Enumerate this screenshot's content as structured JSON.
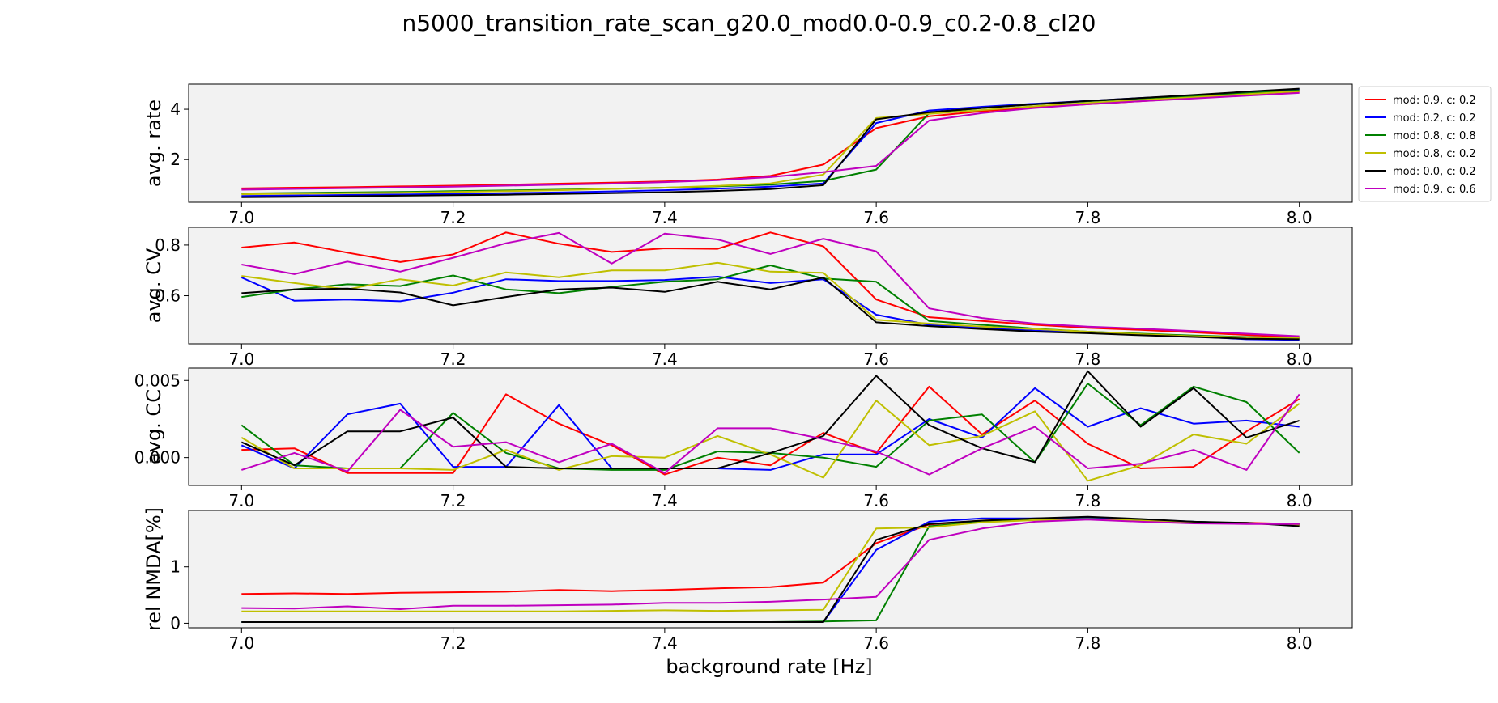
{
  "title": "n5000_transition_rate_scan_g20.0_mod0.0-0.9_c0.2-0.8_cl20",
  "chart_data": {
    "type": "line",
    "title": "n5000_transition_rate_scan_g20.0_mod0.0-0.9_c0.2-0.8_cl20",
    "xlabel": "background rate [Hz]",
    "x": [
      7.0,
      7.05,
      7.1,
      7.15,
      7.2,
      7.25,
      7.3,
      7.35,
      7.4,
      7.45,
      7.5,
      7.55,
      7.6,
      7.65,
      7.7,
      7.75,
      7.8,
      7.85,
      7.9,
      7.95,
      8.0
    ],
    "xlim": [
      6.95,
      8.05
    ],
    "xticks": [
      "7.0",
      "7.2",
      "7.4",
      "7.6",
      "7.8",
      "8.0"
    ],
    "legend": {
      "placement": "outside right of top panel",
      "entries": [
        {
          "label": "mod: 0.9, c: 0.2",
          "color": "#ff0000"
        },
        {
          "label": "mod: 0.2, c: 0.2",
          "color": "#0000ff"
        },
        {
          "label": "mod: 0.8, c: 0.8",
          "color": "#008000"
        },
        {
          "label": "mod: 0.8, c: 0.2",
          "color": "#bfbf00"
        },
        {
          "label": "mod: 0.0, c: 0.2",
          "color": "#000000"
        },
        {
          "label": "mod: 0.9, c: 0.6",
          "color": "#bf00bf"
        }
      ]
    },
    "panels": [
      {
        "ylabel": "avg. rate",
        "ylim": [
          0.3,
          5.0
        ],
        "yticks": [
          2,
          4
        ],
        "yticklabels": [
          "2",
          "4"
        ],
        "series": [
          {
            "name": "mod: 0.9, c: 0.2",
            "color": "#ff0000",
            "values": [
              0.85,
              0.88,
              0.9,
              0.93,
              0.96,
              1.0,
              1.04,
              1.08,
              1.13,
              1.2,
              1.35,
              1.8,
              3.25,
              3.72,
              3.92,
              4.08,
              4.2,
              4.32,
              4.45,
              4.55,
              4.7
            ]
          },
          {
            "name": "mod: 0.2, c: 0.2",
            "color": "#0000ff",
            "values": [
              0.55,
              0.57,
              0.59,
              0.61,
              0.63,
              0.66,
              0.69,
              0.73,
              0.78,
              0.84,
              0.92,
              1.05,
              3.45,
              3.95,
              4.1,
              4.22,
              4.33,
              4.45,
              4.55,
              4.67,
              4.8
            ]
          },
          {
            "name": "mod: 0.8, c: 0.8",
            "color": "#008000",
            "values": [
              0.65,
              0.67,
              0.69,
              0.71,
              0.74,
              0.77,
              0.8,
              0.84,
              0.88,
              0.93,
              1.0,
              1.15,
              1.6,
              3.85,
              4.05,
              4.2,
              4.32,
              4.43,
              4.53,
              4.64,
              4.75
            ]
          },
          {
            "name": "mod: 0.8, c: 0.2",
            "color": "#bfbf00",
            "values": [
              0.62,
              0.64,
              0.66,
              0.68,
              0.71,
              0.74,
              0.78,
              0.83,
              0.88,
              0.95,
              1.05,
              1.4,
              3.65,
              3.82,
              3.97,
              4.12,
              4.25,
              4.37,
              4.48,
              4.6,
              4.72
            ]
          },
          {
            "name": "mod: 0.0, c: 0.2",
            "color": "#000000",
            "values": [
              0.5,
              0.52,
              0.54,
              0.56,
              0.58,
              0.6,
              0.63,
              0.66,
              0.7,
              0.75,
              0.82,
              0.98,
              3.6,
              3.88,
              4.05,
              4.2,
              4.33,
              4.45,
              4.57,
              4.7,
              4.82
            ]
          },
          {
            "name": "mod: 0.9, c: 0.6",
            "color": "#bf00bf",
            "values": [
              0.8,
              0.83,
              0.86,
              0.89,
              0.92,
              0.96,
              1.0,
              1.04,
              1.1,
              1.18,
              1.3,
              1.5,
              1.75,
              3.55,
              3.85,
              4.05,
              4.2,
              4.32,
              4.43,
              4.54,
              4.65
            ]
          }
        ]
      },
      {
        "ylabel": "avg. CV",
        "ylim": [
          0.41,
          0.87
        ],
        "yticks": [
          0.6,
          0.8
        ],
        "yticklabels": [
          "0.6",
          "0.8"
        ],
        "series": [
          {
            "name": "mod: 0.9, c: 0.2",
            "color": "#ff0000",
            "values": [
              0.79,
              0.81,
              0.77,
              0.733,
              0.763,
              0.85,
              0.805,
              0.773,
              0.787,
              0.785,
              0.85,
              0.795,
              0.585,
              0.515,
              0.5,
              0.485,
              0.473,
              0.465,
              0.455,
              0.445,
              0.435
            ]
          },
          {
            "name": "mod: 0.2, c: 0.2",
            "color": "#0000ff",
            "values": [
              0.672,
              0.58,
              0.585,
              0.578,
              0.612,
              0.665,
              0.658,
              0.658,
              0.662,
              0.675,
              0.65,
              0.665,
              0.525,
              0.485,
              0.473,
              0.462,
              0.455,
              0.447,
              0.44,
              0.428,
              0.425
            ]
          },
          {
            "name": "mod: 0.8, c: 0.8",
            "color": "#008000",
            "values": [
              0.595,
              0.625,
              0.645,
              0.638,
              0.68,
              0.625,
              0.61,
              0.635,
              0.655,
              0.665,
              0.72,
              0.668,
              0.655,
              0.5,
              0.485,
              0.47,
              0.458,
              0.45,
              0.443,
              0.437,
              0.432
            ]
          },
          {
            "name": "mod: 0.8, c: 0.2",
            "color": "#bfbf00",
            "values": [
              0.678,
              0.65,
              0.625,
              0.665,
              0.64,
              0.692,
              0.673,
              0.7,
              0.7,
              0.73,
              0.695,
              0.69,
              0.505,
              0.49,
              0.478,
              0.468,
              0.458,
              0.448,
              0.44,
              0.436,
              0.433
            ]
          },
          {
            "name": "mod: 0.0, c: 0.2",
            "color": "#000000",
            "values": [
              0.61,
              0.625,
              0.628,
              0.613,
              0.562,
              0.595,
              0.625,
              0.632,
              0.615,
              0.655,
              0.625,
              0.672,
              0.495,
              0.48,
              0.468,
              0.458,
              0.452,
              0.444,
              0.437,
              0.43,
              0.428
            ]
          },
          {
            "name": "mod: 0.9, c: 0.6",
            "color": "#bf00bf",
            "values": [
              0.723,
              0.685,
              0.735,
              0.695,
              0.75,
              0.807,
              0.848,
              0.727,
              0.845,
              0.822,
              0.765,
              0.825,
              0.775,
              0.55,
              0.512,
              0.49,
              0.478,
              0.47,
              0.46,
              0.45,
              0.44
            ]
          }
        ]
      },
      {
        "ylabel": "avg. CC",
        "ylim": [
          -0.0018,
          0.0058
        ],
        "yticks": [
          0.0,
          0.005
        ],
        "yticklabels": [
          "0.000",
          "0.005"
        ],
        "series": [
          {
            "name": "mod: 0.9, c: 0.2",
            "color": "#ff0000",
            "values": [
              0.0005,
              0.0006,
              -0.001,
              -0.001,
              -0.001,
              0.0041,
              0.0022,
              0.0008,
              -0.0011,
              0.0,
              -0.0005,
              0.0016,
              0.0003,
              0.0046,
              0.0015,
              0.0037,
              0.0009,
              -0.0007,
              -0.0006,
              0.0017,
              0.0038
            ]
          },
          {
            "name": "mod: 0.2, c: 0.2",
            "color": "#0000ff",
            "values": [
              0.0008,
              -0.0007,
              0.0028,
              0.0035,
              -0.0006,
              -0.0006,
              0.0034,
              -0.0007,
              -0.0007,
              -0.0007,
              -0.0008,
              0.0002,
              0.0002,
              0.0025,
              0.0013,
              0.0045,
              0.002,
              0.0032,
              0.0022,
              0.0024,
              0.002
            ]
          },
          {
            "name": "mod: 0.8, c: 0.8",
            "color": "#008000",
            "values": [
              0.0021,
              -0.0005,
              -0.0007,
              -0.0007,
              0.0029,
              0.0003,
              -0.0007,
              -0.0008,
              -0.0008,
              0.0004,
              0.0003,
              0.0,
              -0.0006,
              0.0024,
              0.0028,
              -0.0003,
              0.0048,
              0.0021,
              0.0046,
              0.0036,
              0.0003
            ]
          },
          {
            "name": "mod: 0.8, c: 0.2",
            "color": "#bfbf00",
            "values": [
              0.0013,
              -0.0007,
              -0.0007,
              -0.0007,
              -0.0008,
              0.0005,
              -0.0008,
              0.0001,
              0.0,
              0.0014,
              0.0002,
              -0.0013,
              0.0037,
              0.0008,
              0.0014,
              0.003,
              -0.0015,
              -0.0005,
              0.0015,
              0.0009,
              0.0035
            ]
          },
          {
            "name": "mod: 0.0, c: 0.2",
            "color": "#000000",
            "values": [
              0.001,
              -0.0005,
              0.0017,
              0.0017,
              0.0026,
              -0.0006,
              -0.0007,
              -0.0007,
              -0.0007,
              -0.0007,
              0.0003,
              0.0014,
              0.0053,
              0.0021,
              0.0006,
              -0.0003,
              0.0056,
              0.002,
              0.0045,
              0.0013,
              0.0024
            ]
          },
          {
            "name": "mod: 0.9, c: 0.6",
            "color": "#bf00bf",
            "values": [
              -0.0008,
              0.0003,
              -0.0009,
              0.0031,
              0.0007,
              0.001,
              -0.0003,
              0.0009,
              -0.001,
              0.0019,
              0.0019,
              0.0012,
              0.0004,
              -0.0011,
              0.0006,
              0.002,
              -0.0007,
              -0.0004,
              0.0005,
              -0.0008,
              0.0041
            ]
          }
        ]
      },
      {
        "ylabel": "rel NMDA[%]",
        "ylim": [
          -0.08,
          2.0
        ],
        "yticks": [
          0,
          1
        ],
        "yticklabels": [
          "0",
          "1"
        ],
        "series": [
          {
            "name": "mod: 0.9, c: 0.2",
            "color": "#ff0000",
            "values": [
              0.52,
              0.53,
              0.52,
              0.54,
              0.55,
              0.56,
              0.59,
              0.57,
              0.59,
              0.62,
              0.64,
              0.72,
              1.42,
              1.75,
              1.82,
              1.85,
              1.86,
              1.83,
              1.79,
              1.78,
              1.76
            ]
          },
          {
            "name": "mod: 0.2, c: 0.2",
            "color": "#0000ff",
            "values": [
              0.02,
              0.02,
              0.02,
              0.02,
              0.02,
              0.02,
              0.02,
              0.02,
              0.02,
              0.02,
              0.02,
              0.02,
              1.3,
              1.8,
              1.86,
              1.86,
              1.87,
              1.84,
              1.8,
              1.77,
              1.75
            ]
          },
          {
            "name": "mod: 0.8, c: 0.8",
            "color": "#008000",
            "values": [
              0.02,
              0.02,
              0.02,
              0.02,
              0.02,
              0.02,
              0.02,
              0.02,
              0.02,
              0.02,
              0.02,
              0.03,
              0.05,
              1.72,
              1.8,
              1.84,
              1.85,
              1.83,
              1.8,
              1.77,
              1.75
            ]
          },
          {
            "name": "mod: 0.8, c: 0.2",
            "color": "#bfbf00",
            "values": [
              0.21,
              0.21,
              0.21,
              0.21,
              0.21,
              0.21,
              0.21,
              0.22,
              0.23,
              0.22,
              0.23,
              0.24,
              1.68,
              1.7,
              1.79,
              1.83,
              1.85,
              1.82,
              1.79,
              1.77,
              1.74
            ]
          },
          {
            "name": "mod: 0.0, c: 0.2",
            "color": "#000000",
            "values": [
              0.02,
              0.02,
              0.02,
              0.02,
              0.02,
              0.02,
              0.02,
              0.02,
              0.02,
              0.02,
              0.02,
              0.02,
              1.48,
              1.76,
              1.82,
              1.86,
              1.89,
              1.85,
              1.8,
              1.78,
              1.72
            ]
          },
          {
            "name": "mod: 0.9, c: 0.6",
            "color": "#bf00bf",
            "values": [
              0.27,
              0.26,
              0.3,
              0.25,
              0.31,
              0.31,
              0.32,
              0.33,
              0.36,
              0.36,
              0.38,
              0.42,
              0.47,
              1.48,
              1.68,
              1.8,
              1.84,
              1.8,
              1.77,
              1.76,
              1.76
            ]
          }
        ]
      }
    ]
  }
}
